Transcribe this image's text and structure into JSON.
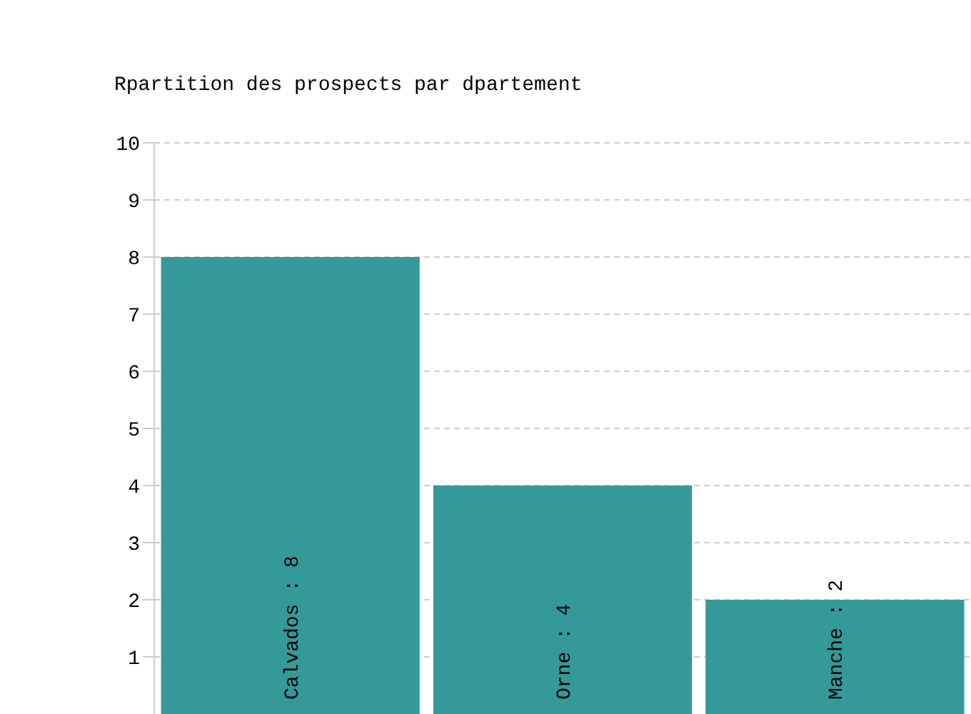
{
  "chart_data": {
    "type": "bar",
    "title": "Rpartition des prospects par dpartement",
    "categories": [
      null,
      null,
      null
    ],
    "values": [
      8,
      4,
      2
    ],
    "color": "#339999",
    "value_labels": [
      "Calvados : 8",
      "Orne : 4",
      "Manche : 2"
    ],
    "ylim": [
      0,
      10
    ],
    "yticks": [
      1,
      2,
      3,
      4,
      5,
      6,
      7,
      8,
      9,
      10
    ],
    "grid": "y",
    "tick_labels": "y"
  }
}
